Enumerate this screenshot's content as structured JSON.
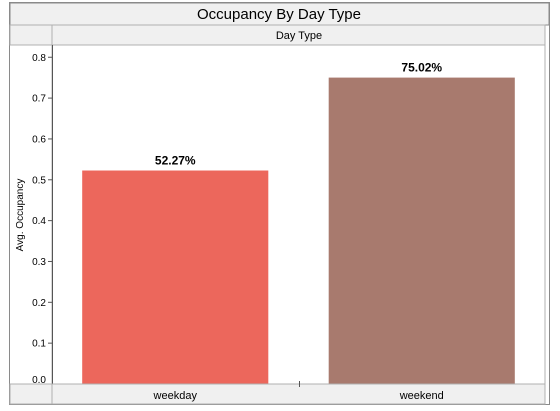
{
  "chart_data": {
    "type": "bar",
    "title": "Occupancy By Day Type",
    "header": "Day Type",
    "xlabel": "",
    "ylabel": "Avg. Occupancy",
    "ylim": [
      0,
      0.83
    ],
    "yticks": [
      "0.0",
      "0.1",
      "0.2",
      "0.3",
      "0.4",
      "0.5",
      "0.6",
      "0.7",
      "0.8"
    ],
    "categories": [
      "weekday",
      "weekend"
    ],
    "values": [
      0.5227,
      0.7502
    ],
    "value_labels": [
      "52.27%",
      "75.02%"
    ],
    "colors": [
      "#ec675c",
      "#a87a6e"
    ],
    "grid": false,
    "legend": "none"
  }
}
